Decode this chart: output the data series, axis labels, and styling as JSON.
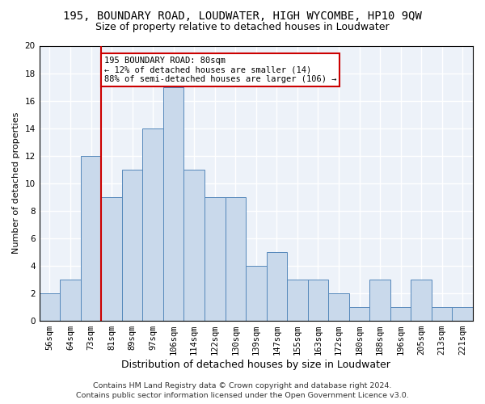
{
  "title1": "195, BOUNDARY ROAD, LOUDWATER, HIGH WYCOMBE, HP10 9QW",
  "title2": "Size of property relative to detached houses in Loudwater",
  "xlabel": "Distribution of detached houses by size in Loudwater",
  "ylabel": "Number of detached properties",
  "bin_labels": [
    "56sqm",
    "64sqm",
    "73sqm",
    "81sqm",
    "89sqm",
    "97sqm",
    "106sqm",
    "114sqm",
    "122sqm",
    "130sqm",
    "139sqm",
    "147sqm",
    "155sqm",
    "163sqm",
    "172sqm",
    "180sqm",
    "188sqm",
    "196sqm",
    "205sqm",
    "213sqm",
    "221sqm"
  ],
  "bar_values": [
    2,
    3,
    12,
    9,
    11,
    14,
    17,
    11,
    9,
    9,
    4,
    5,
    3,
    3,
    2,
    1,
    3,
    1,
    3,
    1,
    1
  ],
  "bar_color": "#c9d9eb",
  "bar_edge_color": "#5588bb",
  "vline_x_index": 3,
  "vline_color": "#cc0000",
  "annotation_text": "195 BOUNDARY ROAD: 80sqm\n← 12% of detached houses are smaller (14)\n88% of semi-detached houses are larger (106) →",
  "annotation_box_color": "#ffffff",
  "annotation_box_edge": "#cc0000",
  "ylim": [
    0,
    20
  ],
  "yticks": [
    0,
    2,
    4,
    6,
    8,
    10,
    12,
    14,
    16,
    18,
    20
  ],
  "footer1": "Contains HM Land Registry data © Crown copyright and database right 2024.",
  "footer2": "Contains public sector information licensed under the Open Government Licence v3.0.",
  "bg_color": "#edf2f9",
  "grid_color": "#ffffff",
  "title1_fontsize": 10,
  "title2_fontsize": 9,
  "xlabel_fontsize": 9,
  "ylabel_fontsize": 8,
  "tick_fontsize": 7.5,
  "footer_fontsize": 6.8,
  "annot_fontsize": 7.5
}
